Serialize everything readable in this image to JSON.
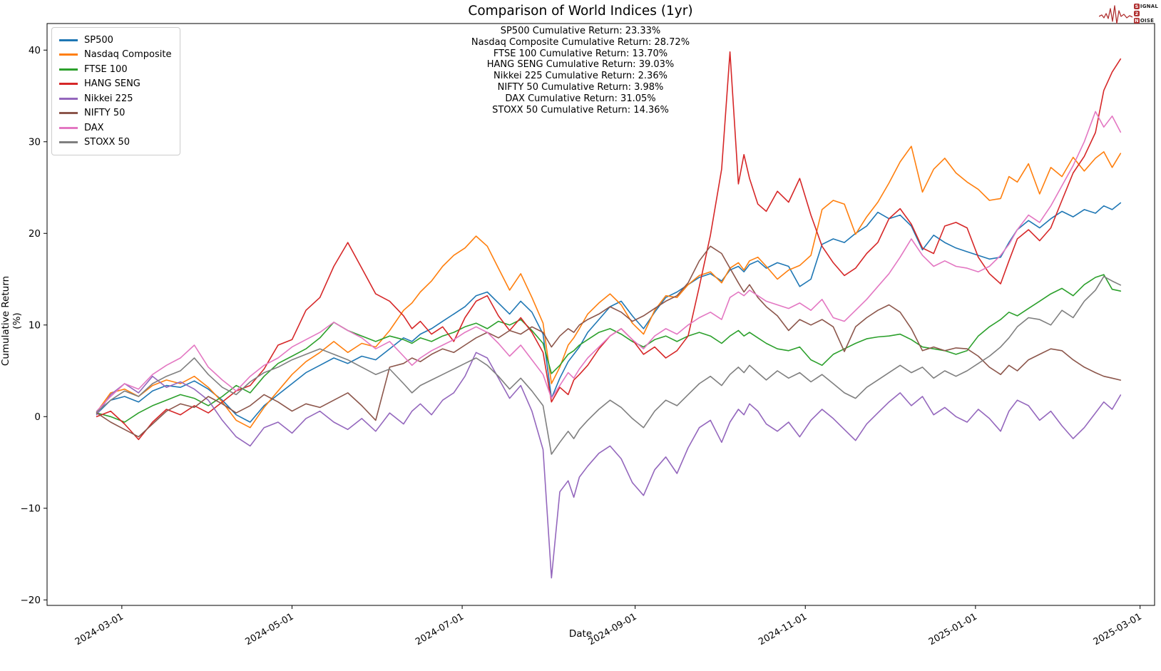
{
  "figure": {
    "title": "Comparison of World Indices (1yr)",
    "xlabel": "Date",
    "ylabel": "Cumulative Return (%)"
  },
  "annotations": [
    "SP500 Cumulative Return: 23.33%",
    "Nasdaq Composite Cumulative Return: 28.72%",
    "FTSE 100 Cumulative Return: 13.70%",
    "HANG SENG Cumulative Return: 39.03%",
    "Nikkei 225 Cumulative Return: 2.36%",
    "NIFTY 50 Cumulative Return: 3.98%",
    "DAX Cumulative Return: 31.05%",
    "STOXX 50 Cumulative Return: 14.36%"
  ],
  "logo": {
    "color": "#b03030",
    "lines": [
      {
        "boxed": "S",
        "rest": "IGNAL"
      },
      {
        "boxed": "2",
        "rest": ""
      },
      {
        "boxed": "N",
        "rest": "OISE"
      }
    ]
  },
  "chart_data": {
    "type": "line",
    "title": "Comparison of World Indices (1yr)",
    "xlabel": "Date",
    "ylabel": "Cumulative Return (%)",
    "grid": false,
    "legend_position": "upper left",
    "ylim": [
      -20.6,
      42.9
    ],
    "xlim_days": [
      -17.8,
      379.2
    ],
    "y_ticks": [
      {
        "label": "−20",
        "value": -20
      },
      {
        "label": "−10",
        "value": -10
      },
      {
        "label": "0",
        "value": 0
      },
      {
        "label": "10",
        "value": 10
      },
      {
        "label": "20",
        "value": 20
      },
      {
        "label": "30",
        "value": 30
      },
      {
        "label": "40",
        "value": 40
      }
    ],
    "x_ticks": [
      {
        "label": "2024-03-01",
        "day": 9
      },
      {
        "label": "2024-05-01",
        "day": 70
      },
      {
        "label": "2024-07-01",
        "day": 131
      },
      {
        "label": "2024-09-01",
        "day": 193
      },
      {
        "label": "2024-11-01",
        "day": 254
      },
      {
        "label": "2025-01-01",
        "day": 315
      },
      {
        "label": "2025-03-01",
        "day": 374
      }
    ],
    "x_days": [
      0,
      5,
      10,
      15,
      20,
      25,
      30,
      35,
      40,
      45,
      50,
      55,
      60,
      65,
      70,
      75,
      80,
      85,
      90,
      95,
      100,
      105,
      110,
      113,
      116,
      120,
      124,
      128,
      132,
      136,
      140,
      144,
      148,
      152,
      156,
      160,
      163,
      166,
      169,
      171,
      173,
      176,
      180,
      184,
      188,
      192,
      196,
      200,
      204,
      208,
      212,
      216,
      220,
      224,
      227,
      230,
      232,
      234,
      237,
      240,
      244,
      248,
      252,
      256,
      260,
      264,
      268,
      272,
      276,
      280,
      284,
      288,
      292,
      296,
      300,
      304,
      308,
      312,
      316,
      320,
      324,
      327,
      330,
      334,
      338,
      342,
      346,
      350,
      354,
      358,
      361,
      364,
      367
    ],
    "series": [
      {
        "name": "SP500",
        "color": "#1f77b4",
        "cumulative_return_pct": 23.33,
        "values": [
          0.3,
          1.8,
          2.2,
          1.6,
          2.8,
          3.4,
          3.2,
          3.9,
          3.0,
          1.8,
          0.2,
          -0.6,
          1.2,
          2.4,
          3.6,
          4.8,
          5.6,
          6.4,
          5.8,
          6.6,
          6.2,
          7.4,
          8.6,
          8.2,
          9.0,
          9.6,
          10.4,
          11.2,
          12.0,
          13.2,
          13.6,
          12.4,
          11.2,
          12.6,
          11.4,
          9.0,
          2.0,
          4.2,
          6.0,
          6.8,
          7.6,
          9.2,
          10.6,
          12.0,
          12.6,
          11.0,
          9.6,
          11.4,
          13.0,
          13.6,
          14.4,
          15.2,
          15.6,
          14.8,
          16.0,
          16.4,
          15.8,
          16.6,
          17.0,
          16.2,
          16.8,
          16.4,
          14.2,
          15.0,
          18.8,
          19.4,
          19.0,
          20.0,
          20.8,
          22.3,
          21.6,
          22.0,
          20.8,
          18.2,
          19.8,
          19.0,
          18.4,
          18.0,
          17.6,
          17.2,
          17.4,
          19.0,
          20.4,
          21.4,
          20.6,
          21.6,
          22.4,
          21.8,
          22.6,
          22.2,
          23.0,
          22.6,
          23.33
        ]
      },
      {
        "name": "Nasdaq Composite",
        "color": "#ff7f0e",
        "cumulative_return_pct": 28.72,
        "values": [
          0.5,
          2.6,
          3.0,
          2.2,
          3.4,
          4.0,
          3.6,
          4.4,
          3.2,
          1.6,
          -0.4,
          -1.2,
          1.0,
          2.8,
          4.6,
          6.0,
          7.0,
          8.2,
          7.0,
          8.0,
          7.6,
          9.4,
          11.6,
          12.4,
          13.6,
          14.8,
          16.4,
          17.6,
          18.4,
          19.7,
          18.6,
          16.2,
          13.8,
          15.6,
          13.0,
          10.2,
          3.6,
          5.4,
          7.8,
          8.6,
          9.6,
          11.2,
          12.4,
          13.4,
          12.2,
          10.2,
          9.0,
          11.6,
          13.2,
          13.0,
          14.4,
          15.4,
          15.8,
          14.6,
          16.2,
          16.8,
          16.0,
          17.0,
          17.4,
          16.4,
          15.0,
          16.0,
          16.5,
          17.6,
          22.6,
          23.6,
          23.2,
          19.9,
          21.8,
          23.4,
          25.5,
          27.8,
          29.5,
          24.5,
          27.0,
          28.2,
          26.6,
          25.6,
          24.8,
          23.6,
          23.8,
          26.2,
          25.6,
          27.6,
          24.3,
          27.2,
          26.2,
          28.3,
          26.8,
          28.2,
          28.9,
          27.2,
          28.72
        ]
      },
      {
        "name": "FTSE 100",
        "color": "#2ca02c",
        "cumulative_return_pct": 13.7,
        "values": [
          0.4,
          0.0,
          -0.6,
          0.4,
          1.2,
          1.8,
          2.4,
          2.0,
          1.2,
          2.2,
          3.4,
          2.6,
          4.4,
          5.8,
          6.6,
          7.4,
          8.6,
          10.3,
          9.4,
          8.8,
          8.2,
          8.8,
          8.4,
          8.0,
          8.6,
          8.2,
          8.8,
          9.2,
          9.8,
          10.2,
          9.6,
          10.4,
          10.0,
          10.6,
          9.4,
          8.0,
          4.7,
          5.6,
          6.8,
          7.2,
          7.8,
          8.4,
          9.2,
          9.6,
          9.0,
          8.2,
          7.6,
          8.4,
          8.8,
          8.2,
          8.8,
          9.2,
          8.8,
          8.0,
          8.8,
          9.4,
          8.8,
          9.2,
          8.6,
          8.0,
          7.4,
          7.2,
          7.6,
          6.2,
          5.6,
          6.8,
          7.4,
          8.0,
          8.5,
          8.7,
          8.8,
          9.0,
          8.4,
          7.6,
          7.4,
          7.2,
          6.8,
          7.2,
          8.8,
          9.8,
          10.6,
          11.4,
          11.0,
          11.8,
          12.6,
          13.4,
          14.0,
          13.2,
          14.4,
          15.2,
          15.5,
          13.9,
          13.7
        ]
      },
      {
        "name": "HANG SENG",
        "color": "#d62728",
        "cumulative_return_pct": 39.03,
        "values": [
          0.0,
          0.6,
          -0.8,
          -2.5,
          -0.6,
          0.8,
          0.2,
          1.2,
          0.4,
          1.6,
          2.8,
          3.4,
          5.2,
          7.8,
          8.4,
          11.6,
          13.0,
          16.4,
          19.0,
          16.2,
          13.4,
          12.6,
          11.0,
          9.6,
          10.4,
          9.0,
          9.8,
          8.2,
          10.8,
          12.6,
          13.2,
          11.0,
          9.4,
          10.8,
          9.2,
          7.0,
          1.6,
          3.2,
          2.4,
          4.0,
          4.6,
          5.6,
          7.4,
          8.8,
          9.6,
          8.4,
          6.8,
          7.6,
          6.4,
          7.2,
          8.8,
          14.2,
          19.8,
          27.0,
          39.8,
          25.4,
          28.6,
          26.0,
          23.2,
          22.4,
          24.6,
          23.4,
          26.0,
          22.0,
          18.6,
          16.8,
          15.4,
          16.2,
          17.8,
          19.0,
          21.6,
          22.7,
          21.0,
          18.4,
          17.8,
          20.8,
          21.2,
          20.6,
          17.4,
          15.6,
          14.5,
          17.0,
          19.4,
          20.4,
          19.2,
          20.6,
          23.6,
          26.6,
          28.4,
          31.0,
          35.6,
          37.6,
          39.03
        ]
      },
      {
        "name": "Nikkei 225",
        "color": "#9467bd",
        "cumulative_return_pct": 2.36,
        "values": [
          0.2,
          2.4,
          3.6,
          2.6,
          4.4,
          3.2,
          3.8,
          3.0,
          1.8,
          -0.4,
          -2.2,
          -3.2,
          -1.2,
          -0.6,
          -1.8,
          -0.2,
          0.6,
          -0.6,
          -1.4,
          -0.2,
          -1.6,
          0.4,
          -0.8,
          0.6,
          1.4,
          0.2,
          1.8,
          2.6,
          4.4,
          7.0,
          6.4,
          4.2,
          2.0,
          3.4,
          0.6,
          -3.6,
          -17.6,
          -8.2,
          -7.0,
          -8.8,
          -6.6,
          -5.4,
          -4.0,
          -3.2,
          -4.6,
          -7.2,
          -8.6,
          -5.8,
          -4.4,
          -6.2,
          -3.4,
          -1.2,
          -0.4,
          -2.8,
          -0.6,
          0.8,
          0.2,
          1.4,
          0.6,
          -0.8,
          -1.6,
          -0.6,
          -2.2,
          -0.4,
          0.8,
          -0.2,
          -1.4,
          -2.6,
          -0.8,
          0.4,
          1.6,
          2.6,
          1.2,
          2.2,
          0.2,
          1.0,
          0.0,
          -0.6,
          0.8,
          -0.2,
          -1.6,
          0.6,
          1.8,
          1.2,
          -0.4,
          0.6,
          -1.0,
          -2.4,
          -1.2,
          0.4,
          1.6,
          0.8,
          2.36
        ]
      },
      {
        "name": "NIFTY 50",
        "color": "#8c564b",
        "cumulative_return_pct": 3.98,
        "values": [
          0.4,
          -0.6,
          -1.4,
          -2.2,
          -0.8,
          0.6,
          1.4,
          1.0,
          2.2,
          1.4,
          0.4,
          1.2,
          2.4,
          1.6,
          0.6,
          1.4,
          1.0,
          1.8,
          2.6,
          1.2,
          -0.4,
          5.4,
          5.8,
          6.4,
          6.0,
          6.8,
          7.4,
          7.0,
          7.8,
          8.6,
          9.2,
          8.6,
          9.4,
          9.0,
          9.8,
          9.2,
          7.6,
          8.8,
          9.6,
          9.2,
          10.0,
          10.6,
          11.2,
          12.0,
          11.4,
          10.4,
          11.0,
          11.8,
          12.6,
          13.2,
          14.6,
          17.0,
          18.6,
          17.8,
          16.2,
          14.6,
          13.6,
          14.4,
          13.0,
          12.0,
          11.0,
          9.4,
          10.6,
          10.0,
          10.6,
          9.8,
          7.1,
          9.8,
          10.8,
          11.6,
          12.2,
          11.4,
          9.6,
          7.2,
          7.6,
          7.2,
          7.5,
          7.4,
          6.6,
          5.4,
          4.6,
          5.6,
          5.0,
          6.2,
          6.8,
          7.4,
          7.2,
          6.2,
          5.4,
          4.8,
          4.4,
          4.2,
          3.98
        ]
      },
      {
        "name": "DAX",
        "color": "#e377c2",
        "cumulative_return_pct": 31.05,
        "values": [
          0.6,
          2.2,
          3.6,
          3.0,
          4.6,
          5.6,
          6.4,
          7.8,
          5.4,
          4.0,
          2.8,
          4.4,
          5.6,
          6.4,
          7.6,
          8.4,
          9.2,
          10.3,
          9.4,
          8.6,
          7.4,
          8.2,
          6.6,
          5.6,
          6.4,
          7.2,
          7.8,
          8.4,
          9.2,
          9.8,
          9.2,
          8.0,
          6.6,
          7.8,
          6.2,
          4.6,
          2.0,
          3.4,
          4.8,
          4.2,
          5.2,
          6.4,
          7.6,
          8.8,
          9.6,
          8.4,
          7.4,
          8.8,
          9.6,
          9.0,
          10.0,
          10.8,
          11.4,
          10.6,
          13.0,
          13.6,
          13.2,
          13.8,
          13.2,
          12.6,
          12.2,
          11.8,
          12.4,
          11.6,
          12.8,
          10.8,
          10.4,
          11.6,
          12.8,
          14.2,
          15.6,
          17.4,
          19.4,
          17.6,
          16.4,
          17.0,
          16.4,
          16.2,
          15.8,
          16.4,
          17.6,
          18.8,
          20.4,
          22.0,
          21.2,
          23.0,
          25.2,
          27.4,
          30.0,
          33.3,
          31.6,
          32.8,
          31.05
        ]
      },
      {
        "name": "STOXX 50",
        "color": "#7f7f7f",
        "cumulative_return_pct": 14.36,
        "values": [
          0.5,
          1.8,
          2.8,
          2.2,
          3.6,
          4.4,
          5.0,
          6.4,
          4.6,
          3.2,
          2.4,
          3.8,
          4.8,
          5.4,
          6.2,
          6.8,
          7.4,
          6.8,
          6.2,
          5.4,
          4.6,
          5.2,
          3.6,
          2.6,
          3.4,
          4.0,
          4.6,
          5.2,
          5.8,
          6.4,
          5.6,
          4.4,
          3.0,
          4.2,
          2.8,
          1.2,
          -4.1,
          -2.8,
          -1.6,
          -2.4,
          -1.4,
          -0.4,
          0.8,
          1.8,
          1.0,
          -0.2,
          -1.2,
          0.6,
          1.8,
          1.2,
          2.4,
          3.6,
          4.4,
          3.4,
          4.6,
          5.4,
          4.8,
          5.6,
          4.8,
          4.0,
          5.0,
          4.2,
          4.8,
          3.8,
          4.6,
          3.6,
          2.6,
          2.0,
          3.2,
          4.0,
          4.8,
          5.6,
          4.8,
          5.4,
          4.2,
          5.0,
          4.4,
          5.0,
          5.8,
          6.6,
          7.6,
          8.6,
          9.8,
          10.8,
          10.6,
          10.0,
          11.6,
          10.8,
          12.6,
          13.8,
          15.3,
          14.8,
          14.36
        ]
      }
    ]
  }
}
